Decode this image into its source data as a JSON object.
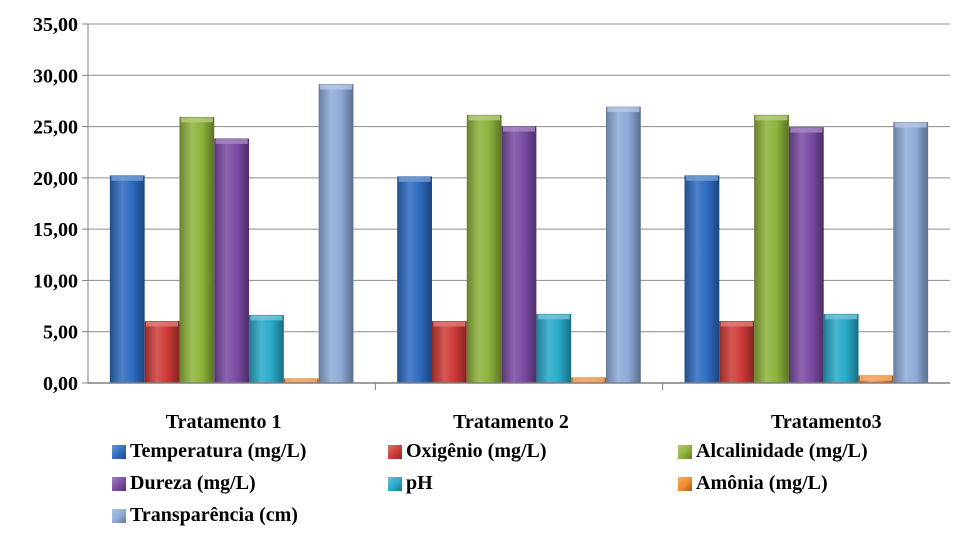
{
  "chart_data": {
    "type": "bar",
    "categories": [
      "Tratamento 1",
      "Tratamento 2",
      "Tratamento3"
    ],
    "ylim": [
      0,
      35
    ],
    "yticks": [
      "0,00",
      "5,00",
      "10,00",
      "15,00",
      "20,00",
      "25,00",
      "30,00",
      "35,00"
    ],
    "grid": true,
    "legend_position": "bottom",
    "series": [
      {
        "name": "Temperatura (mg/L)",
        "color": "#2e6bc0",
        "values": [
          20.2,
          20.1,
          20.2
        ]
      },
      {
        "name": "Oxigênio (mg/L)",
        "color": "#cc3a36",
        "values": [
          6.0,
          6.0,
          6.0
        ]
      },
      {
        "name": "Alcalinidade (mg/L)",
        "color": "#8db33a",
        "values": [
          25.9,
          26.1,
          26.1
        ]
      },
      {
        "name": "Dureza (mg/L)",
        "color": "#7a4aa3",
        "values": [
          23.8,
          25.0,
          24.9
        ]
      },
      {
        "name": "pH",
        "color": "#28a9c8",
        "values": [
          6.6,
          6.7,
          6.7
        ]
      },
      {
        "name": "Amônia (mg/L)",
        "color": "#f08a2a",
        "values": [
          0.4,
          0.5,
          0.7
        ]
      },
      {
        "name": "Transparência (cm)",
        "color": "#8eaad8",
        "values": [
          29.1,
          26.9,
          25.4
        ]
      }
    ]
  }
}
